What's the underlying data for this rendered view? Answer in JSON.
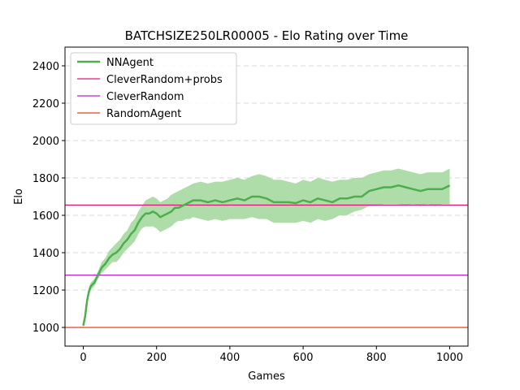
{
  "chart_data": {
    "type": "line",
    "title": "BATCHSIZE250LR00005 - Elo Rating over Time",
    "xlabel": "Games",
    "ylabel": "Elo",
    "xlim": [
      -50,
      1050
    ],
    "ylim": [
      900,
      2500
    ],
    "xticks": [
      0,
      200,
      400,
      600,
      800,
      1000
    ],
    "yticks": [
      1000,
      1200,
      1400,
      1600,
      1800,
      2000,
      2200,
      2400
    ],
    "grid": "horizontal dashed",
    "legend_position": "top-left",
    "series": [
      {
        "name": "NNAgent",
        "color": "#4cae4c",
        "band_color": "#a6d9a0",
        "x": [
          0,
          5,
          10,
          15,
          20,
          30,
          40,
          50,
          60,
          70,
          80,
          90,
          100,
          110,
          120,
          130,
          140,
          150,
          160,
          170,
          180,
          190,
          200,
          210,
          220,
          230,
          240,
          250,
          260,
          270,
          280,
          290,
          300,
          320,
          340,
          360,
          380,
          400,
          420,
          440,
          460,
          480,
          500,
          520,
          540,
          560,
          580,
          600,
          620,
          640,
          660,
          680,
          700,
          720,
          740,
          760,
          780,
          800,
          820,
          840,
          860,
          880,
          900,
          920,
          940,
          960,
          980,
          1000
        ],
        "y": [
          1010,
          1060,
          1140,
          1190,
          1220,
          1240,
          1280,
          1320,
          1340,
          1370,
          1390,
          1400,
          1420,
          1450,
          1470,
          1500,
          1520,
          1560,
          1590,
          1610,
          1610,
          1620,
          1610,
          1590,
          1600,
          1610,
          1620,
          1640,
          1640,
          1650,
          1660,
          1670,
          1680,
          1680,
          1670,
          1680,
          1670,
          1680,
          1690,
          1680,
          1700,
          1700,
          1690,
          1670,
          1670,
          1670,
          1665,
          1680,
          1670,
          1690,
          1680,
          1670,
          1690,
          1690,
          1700,
          1700,
          1730,
          1740,
          1750,
          1750,
          1760,
          1750,
          1740,
          1730,
          1740,
          1740,
          1740,
          1760
        ],
        "lower": [
          990,
          1040,
          1120,
          1170,
          1200,
          1220,
          1260,
          1290,
          1310,
          1330,
          1350,
          1350,
          1370,
          1400,
          1420,
          1440,
          1460,
          1500,
          1530,
          1540,
          1540,
          1540,
          1530,
          1510,
          1520,
          1530,
          1540,
          1560,
          1570,
          1570,
          1580,
          1580,
          1590,
          1580,
          1570,
          1580,
          1570,
          1580,
          1580,
          1580,
          1590,
          1580,
          1580,
          1560,
          1560,
          1560,
          1560,
          1570,
          1560,
          1580,
          1570,
          1580,
          1600,
          1600,
          1620,
          1630,
          1650,
          1650,
          1660,
          1660,
          1660,
          1650,
          1660,
          1650,
          1660,
          1650,
          1660,
          1660
        ],
        "upper": [
          1030,
          1080,
          1160,
          1210,
          1240,
          1260,
          1300,
          1350,
          1370,
          1410,
          1430,
          1450,
          1470,
          1500,
          1520,
          1560,
          1580,
          1620,
          1650,
          1680,
          1690,
          1700,
          1690,
          1670,
          1680,
          1690,
          1710,
          1720,
          1730,
          1740,
          1750,
          1760,
          1770,
          1780,
          1770,
          1780,
          1780,
          1790,
          1800,
          1790,
          1810,
          1820,
          1810,
          1790,
          1790,
          1780,
          1770,
          1790,
          1780,
          1800,
          1790,
          1780,
          1790,
          1790,
          1800,
          1800,
          1820,
          1830,
          1840,
          1840,
          1850,
          1840,
          1830,
          1820,
          1830,
          1830,
          1830,
          1850
        ]
      },
      {
        "name": "CleverRandom+probs",
        "color": "#e0197a",
        "constant": 1655
      },
      {
        "name": "CleverRandom",
        "color": "#b225c4",
        "constant": 1280
      },
      {
        "name": "RandomAgent",
        "color": "#e8402a",
        "constant": 1000
      }
    ]
  }
}
